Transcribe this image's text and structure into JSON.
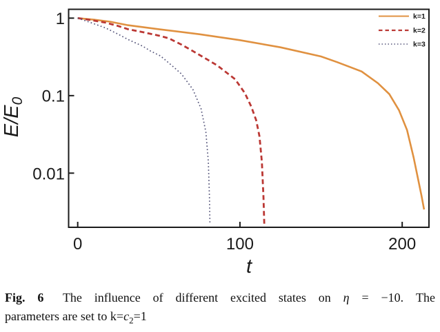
{
  "figure": {
    "caption": {
      "fig_label": "Fig. 6",
      "text_1": "The influence of different excited states on",
      "eta_symbol": "η",
      "text_2": "= −10. The",
      "text_3": "parameters are set to k=",
      "c_symbol": "c",
      "c_subscript": "2",
      "text_4": "=1"
    }
  },
  "colors": {
    "frame": "#1a1a1a",
    "background": "#ffffff",
    "k1_orange": "#E09140",
    "k2_red": "#BB3834",
    "k3_blue": "#55557A"
  },
  "chart_data": {
    "type": "line",
    "title": "",
    "xlabel": "t",
    "ylabel": "E/E0",
    "ylabel_main": "E/E",
    "ylabel_sub": "0",
    "x_scale": "linear",
    "y_scale": "log",
    "xlim": [
      -5.6,
      216.5
    ],
    "ylim": [
      0.002,
      1.3
    ],
    "grid": false,
    "legend_position": "top-right-inside",
    "x_ticks": [
      {
        "value": 0,
        "label": "0"
      },
      {
        "value": 100,
        "label": "100"
      },
      {
        "value": 200,
        "label": "200"
      }
    ],
    "y_ticks": [
      {
        "value": 1,
        "label": "1"
      },
      {
        "value": 0.1,
        "label": "0.1"
      },
      {
        "value": 0.01,
        "label": "0.01"
      }
    ],
    "series": [
      {
        "id": "k1",
        "name": "k=1",
        "color": "#E09140",
        "dash": "solid",
        "width": 2.6,
        "points": [
          [
            0,
            1
          ],
          [
            10,
            0.955
          ],
          [
            20,
            0.9
          ],
          [
            31,
            0.81
          ],
          [
            50,
            0.72
          ],
          [
            75,
            0.62
          ],
          [
            100,
            0.52
          ],
          [
            125,
            0.42
          ],
          [
            150,
            0.32
          ],
          [
            160,
            0.27
          ],
          [
            175,
            0.205
          ],
          [
            185,
            0.145
          ],
          [
            192,
            0.105
          ],
          [
            198,
            0.065
          ],
          [
            203,
            0.036
          ],
          [
            207,
            0.016
          ],
          [
            210,
            0.008
          ],
          [
            212,
            0.005
          ],
          [
            213.5,
            0.0034
          ]
        ]
      },
      {
        "id": "k2",
        "name": "k=2",
        "color": "#BB3834",
        "dash": "dashed",
        "width": 2.8,
        "points": [
          [
            0,
            1
          ],
          [
            8,
            0.945
          ],
          [
            17,
            0.875
          ],
          [
            25,
            0.79
          ],
          [
            31,
            0.72
          ],
          [
            40,
            0.66
          ],
          [
            50,
            0.595
          ],
          [
            56,
            0.55
          ],
          [
            64,
            0.455
          ],
          [
            71,
            0.375
          ],
          [
            79,
            0.3
          ],
          [
            86,
            0.245
          ],
          [
            97,
            0.163
          ],
          [
            103,
            0.108
          ],
          [
            107,
            0.072
          ],
          [
            110,
            0.048
          ],
          [
            112,
            0.03
          ],
          [
            113.5,
            0.014
          ],
          [
            114.5,
            0.005
          ],
          [
            115,
            0.0022
          ]
        ]
      },
      {
        "id": "k3",
        "name": "k=3",
        "color": "#55557A",
        "dash": "dotted",
        "width": 1.7,
        "points": [
          [
            0,
            1
          ],
          [
            8,
            0.875
          ],
          [
            17,
            0.75
          ],
          [
            25,
            0.62
          ],
          [
            31,
            0.53
          ],
          [
            40,
            0.435
          ],
          [
            45,
            0.375
          ],
          [
            51,
            0.325
          ],
          [
            59,
            0.235
          ],
          [
            64,
            0.19
          ],
          [
            71,
            0.12
          ],
          [
            76,
            0.068
          ],
          [
            79,
            0.034
          ],
          [
            80.5,
            0.014
          ],
          [
            81.2,
            0.005
          ],
          [
            81.5,
            0.0022
          ]
        ]
      }
    ]
  }
}
